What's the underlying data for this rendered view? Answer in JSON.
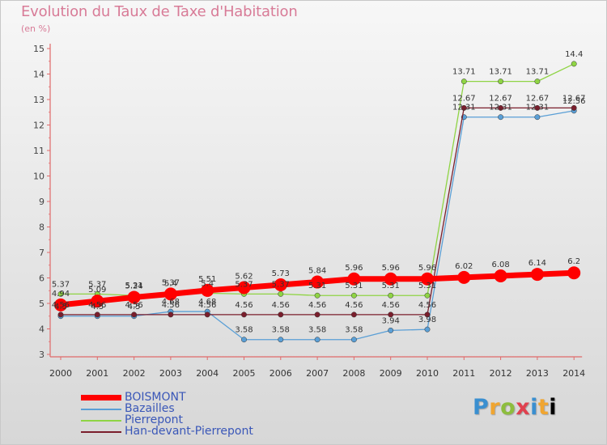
{
  "chart_data": {
    "type": "line",
    "title": "Evolution du Taux de Taxe d'Habitation",
    "unit_label": "(en %)",
    "x": [
      "2000",
      "2001",
      "2002",
      "2003",
      "2004",
      "2005",
      "2006",
      "2007",
      "2008",
      "2009",
      "2010",
      "2011",
      "2012",
      "2013",
      "2014"
    ],
    "ylim": [
      3,
      15
    ],
    "yticks": [
      "3",
      "4",
      "5",
      "6",
      "7",
      "8",
      "9",
      "10",
      "11",
      "12",
      "13",
      "14",
      "15"
    ],
    "grid": false,
    "legend_position": "bottom-left",
    "series": [
      {
        "name": "BOISMONT",
        "color": "#ff0000",
        "width": 7,
        "marker": 8,
        "values": [
          4.94,
          5.09,
          5.24,
          5.37,
          5.51,
          5.62,
          5.73,
          5.84,
          5.96,
          5.96,
          5.96,
          6.02,
          6.08,
          6.14,
          6.2
        ],
        "labels": [
          "4.94",
          "5.09",
          "5.24",
          "5.37",
          "5.51",
          "5.62",
          "5.73",
          "5.84",
          "5.96",
          "5.96",
          "5.96",
          "6.02",
          "6.08",
          "6.14",
          "6.2"
        ],
        "label_dy": -11
      },
      {
        "name": "Bazailles",
        "color": "#5a9fd6",
        "width": 1.3,
        "marker": 3.2,
        "values": [
          4.5,
          4.5,
          4.5,
          4.68,
          4.68,
          3.58,
          3.58,
          3.58,
          3.58,
          3.94,
          3.98,
          12.31,
          12.31,
          12.31,
          12.56
        ],
        "labels": [
          "4.5",
          "4.5",
          "4.5",
          "4.68",
          "4.68",
          "3.58",
          "3.58",
          "3.58",
          "3.58",
          "3.94",
          "3.98",
          "12.31",
          "12.31",
          "12.31",
          "12.56"
        ],
        "label_dy": -9
      },
      {
        "name": "Pierrepont",
        "color": "#8fd444",
        "width": 1.3,
        "marker": 3.2,
        "values": [
          5.37,
          5.37,
          5.31,
          5.4,
          5.4,
          5.37,
          5.37,
          5.31,
          5.31,
          5.31,
          5.31,
          13.71,
          13.71,
          13.71,
          14.4
        ],
        "labels": [
          "5.37",
          "5.37",
          "5.31",
          "5.4",
          "5.4",
          "5.37",
          "5.37",
          "5.31",
          "5.31",
          "5.31",
          "5.31",
          "13.71",
          "13.71",
          "13.71",
          "14.4"
        ],
        "label_dy": -9
      },
      {
        "name": "Han-devant-Pierrepont",
        "color": "#7a1e2c",
        "width": 1.3,
        "marker": 3.2,
        "values": [
          4.56,
          4.56,
          4.56,
          4.56,
          4.56,
          4.56,
          4.56,
          4.56,
          4.56,
          4.56,
          4.56,
          12.67,
          12.67,
          12.67,
          12.67
        ],
        "labels": [
          "4.56",
          "4.56",
          "4.56",
          "4.56",
          "4.56",
          "4.56",
          "4.56",
          "4.56",
          "4.56",
          "4.56",
          "4.56",
          "12.67",
          "12.67",
          "12.67",
          "12.67"
        ],
        "label_dy": -9
      }
    ]
  },
  "logo": {
    "letters": [
      "P",
      "r",
      "o",
      "x",
      "i",
      "t",
      "i"
    ]
  }
}
